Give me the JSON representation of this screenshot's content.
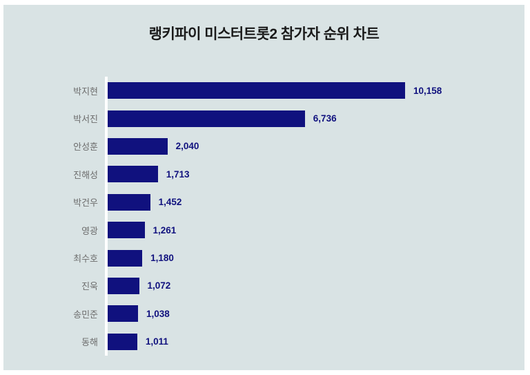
{
  "title": "랭키파이 미스터트롯2 참가자 순위 차트",
  "colors": {
    "page_background": "#ffffff",
    "panel_background": "#d9e3e4",
    "bar": "#10117e",
    "value_text": "#10117e",
    "category_label_text": "#6d6d6d",
    "title_text": "#1a1a1a",
    "axis_line": "#ffffff"
  },
  "chart_data": {
    "type": "bar",
    "orientation": "horizontal",
    "title": "랭키파이 미스터트롯2 참가자 순위 차트",
    "xlabel": "",
    "ylabel": "",
    "categories": [
      "박지현",
      "박서진",
      "안성훈",
      "진해성",
      "박건우",
      "영광",
      "최수호",
      "진욱",
      "송민준",
      "동해"
    ],
    "values": [
      10158,
      6736,
      2040,
      1713,
      1452,
      1261,
      1180,
      1072,
      1038,
      1011
    ],
    "value_labels": [
      "10,158",
      "6,736",
      "2,040",
      "1,713",
      "1,452",
      "1,261",
      "1,180",
      "1,072",
      "1,038",
      "1,011"
    ],
    "xlim": [
      0,
      10158
    ],
    "grid": false,
    "legend": false,
    "data_labels": "end-of-bar"
  }
}
